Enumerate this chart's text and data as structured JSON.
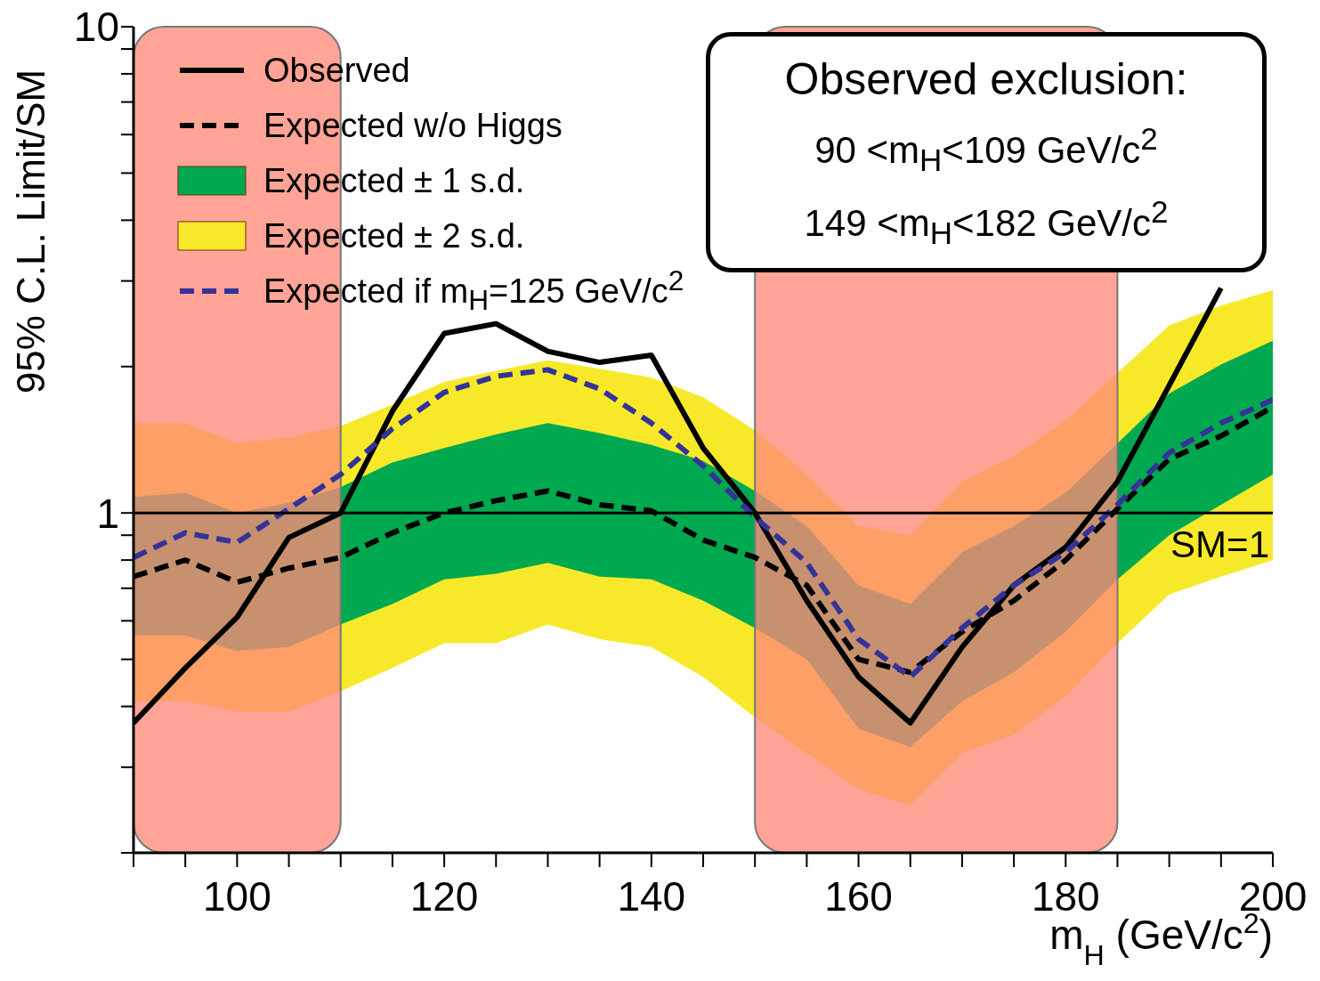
{
  "chart_data": {
    "type": "line",
    "x": [
      90,
      95,
      100,
      105,
      110,
      115,
      120,
      125,
      130,
      135,
      140,
      145,
      150,
      155,
      160,
      165,
      170,
      175,
      180,
      185,
      190,
      195,
      200
    ],
    "series": [
      {
        "name": "Observed",
        "color": "#000000",
        "line_style": "solid",
        "values": [
          0.37,
          0.48,
          0.61,
          0.89,
          1.0,
          1.62,
          2.34,
          2.45,
          2.15,
          2.04,
          2.11,
          1.36,
          1.0,
          0.66,
          0.46,
          0.37,
          0.53,
          0.71,
          0.85,
          1.16,
          1.83,
          2.9,
          null
        ]
      },
      {
        "name": "Expected w/o Higgs",
        "color": "#000000",
        "line_style": "dashed",
        "values": [
          0.74,
          0.8,
          0.72,
          0.77,
          0.81,
          0.91,
          1.0,
          1.06,
          1.11,
          1.04,
          1.01,
          0.88,
          0.81,
          0.71,
          0.5,
          0.47,
          0.57,
          0.66,
          0.8,
          1.02,
          1.29,
          1.44,
          1.65
        ]
      },
      {
        "name": "Expected ± 1 s.d.",
        "color": "#00a84f",
        "values": [
          null,
          null,
          null,
          null,
          null,
          null,
          null,
          null,
          null,
          null,
          null,
          null,
          null,
          null,
          null,
          null,
          null,
          null,
          null,
          null,
          null,
          null,
          null
        ],
        "lower": [
          0.56,
          0.56,
          0.52,
          0.53,
          0.59,
          0.65,
          0.73,
          0.75,
          0.79,
          0.74,
          0.73,
          0.66,
          0.58,
          0.5,
          0.36,
          0.33,
          0.41,
          0.47,
          0.57,
          0.73,
          0.9,
          1.04,
          1.2
        ],
        "upper": [
          1.08,
          1.1,
          1.0,
          1.05,
          1.13,
          1.27,
          1.36,
          1.45,
          1.53,
          1.46,
          1.38,
          1.28,
          1.11,
          0.94,
          0.71,
          0.65,
          0.83,
          0.94,
          1.1,
          1.39,
          1.76,
          2.02,
          2.26
        ]
      },
      {
        "name": "Expected ± 2 s.d.",
        "color": "#f7e92a",
        "values": [
          null,
          null,
          null,
          null,
          null,
          null,
          null,
          null,
          null,
          null,
          null,
          null,
          null,
          null,
          null,
          null,
          null,
          null,
          null,
          null,
          null,
          null,
          null
        ],
        "lower": [
          0.41,
          0.41,
          0.39,
          0.39,
          0.43,
          0.48,
          0.54,
          0.54,
          0.59,
          0.55,
          0.53,
          0.46,
          0.38,
          0.32,
          0.27,
          0.25,
          0.32,
          0.35,
          0.42,
          0.54,
          0.68,
          0.74,
          0.8
        ],
        "upper": [
          1.53,
          1.53,
          1.39,
          1.43,
          1.51,
          1.67,
          1.86,
          1.96,
          2.06,
          1.98,
          1.9,
          1.73,
          1.48,
          1.2,
          0.94,
          0.9,
          1.16,
          1.31,
          1.55,
          1.94,
          2.43,
          2.67,
          2.87
        ]
      },
      {
        "name": "Expected if m$_{H}$=125 GeV/c$^{2}$",
        "color": "#333399",
        "line_style": "dashed",
        "values": [
          0.81,
          0.91,
          0.87,
          1.02,
          1.2,
          1.49,
          1.77,
          1.91,
          1.97,
          1.8,
          1.53,
          1.25,
          0.98,
          0.79,
          0.55,
          0.46,
          0.58,
          0.71,
          0.83,
          1.04,
          1.33,
          1.53,
          1.71
        ]
      }
    ],
    "xlim": [
      90,
      200
    ],
    "xticks": [
      {
        "value": 90,
        "label": null
      },
      {
        "value": 95,
        "label": null
      },
      100,
      {
        "value": 105,
        "label": null
      },
      {
        "value": 110,
        "label": null
      },
      {
        "value": 115,
        "label": null
      },
      120,
      {
        "value": 125,
        "label": null
      },
      {
        "value": 130,
        "label": null
      },
      {
        "value": 135,
        "label": null
      },
      140,
      {
        "value": 145,
        "label": null
      },
      {
        "value": 150,
        "label": null
      },
      {
        "value": 155,
        "label": null
      },
      160,
      {
        "value": 165,
        "label": null
      },
      {
        "value": 170,
        "label": null
      },
      {
        "value": 175,
        "label": null
      },
      180,
      {
        "value": 185,
        "label": null
      },
      {
        "value": 190,
        "label": null
      },
      {
        "value": 195,
        "label": null
      },
      200
    ],
    "ylim": [
      0.2,
      10
    ],
    "yticks": [
      {
        "value": 0.2,
        "label": null
      },
      {
        "value": 0.3,
        "label": null
      },
      {
        "value": 0.4,
        "label": null
      },
      {
        "value": 0.5,
        "label": null
      },
      {
        "value": 0.6,
        "label": null
      },
      {
        "value": 0.7,
        "label": null
      },
      {
        "value": 0.8,
        "label": null
      },
      {
        "value": 0.9,
        "label": null
      },
      1,
      {
        "value": 2,
        "label": null
      },
      {
        "value": 3,
        "label": null
      },
      {
        "value": 4,
        "label": null
      },
      {
        "value": 5,
        "label": null
      },
      {
        "value": 6,
        "label": null
      },
      {
        "value": 7,
        "label": null
      },
      {
        "value": 8,
        "label": null
      },
      {
        "value": 9,
        "label": null
      },
      10
    ],
    "log": "y",
    "xlabel": "m$_{H}$ (GeV/c$^{2}$)",
    "ylabel": "95% C.L. Limit/SM",
    "legend": "top left",
    "ref_lines": [
      {
        "axis": "y",
        "value": 1,
        "label": "SM=1",
        "color": "#000000"
      }
    ],
    "bands": [
      {
        "axis": "x",
        "from": 90,
        "to": 110,
        "color": "#ff8a78"
      },
      {
        "axis": "x",
        "from": 150,
        "to": 185,
        "color": "#ff8a78"
      }
    ],
    "annotations": [
      "Observed exclusion:",
      "90 <m$_{H}$<109 GeV/c$^{2}$",
      "149 <m$_{H}$<182 GeV/c$^{2}$"
    ]
  }
}
